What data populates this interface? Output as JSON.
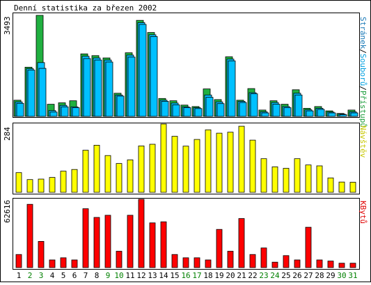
{
  "title": "Denní statistika za březen 2002",
  "colors": {
    "pages": "#2a9fd6",
    "files": "#00c0ff",
    "hits": "#20b040",
    "visits": "#ffff00",
    "kbytes": "#ff0000",
    "weekend_label": "#008000"
  },
  "chart_data": [
    {
      "type": "bar",
      "panel": "top",
      "scale_label": "3493",
      "side_label": {
        "parts": [
          {
            "text": "Stránek",
            "color": "#1a7ab8"
          },
          {
            "text": "/",
            "color": "#000000"
          },
          {
            "text": "Souborů",
            "color": "#00a0e0"
          },
          {
            "text": "/",
            "color": "#000000"
          },
          {
            "text": "Přístupů",
            "color": "#20a040"
          }
        ]
      },
      "ylim": [
        0,
        3493
      ],
      "series": [
        {
          "name": "Přístupů",
          "values": [
            560,
            1700,
            3493,
            420,
            470,
            540,
            2160,
            2100,
            2020,
            800,
            2200,
            3320,
            2900,
            620,
            540,
            390,
            340,
            950,
            580,
            2060,
            560,
            960,
            220,
            540,
            420,
            920,
            280,
            340,
            190,
            100,
            220
          ]
        },
        {
          "name": "Souborů",
          "values": [
            500,
            1650,
            1860,
            200,
            380,
            330,
            2080,
            2020,
            1950,
            740,
            2120,
            3240,
            2820,
            560,
            460,
            330,
            300,
            740,
            500,
            1980,
            520,
            820,
            160,
            480,
            340,
            800,
            230,
            280,
            150,
            80,
            160
          ]
        },
        {
          "name": "Stránek",
          "values": [
            450,
            1600,
            1660,
            150,
            330,
            300,
            2000,
            1950,
            1880,
            700,
            2050,
            3180,
            2760,
            520,
            400,
            300,
            270,
            660,
            440,
            1920,
            480,
            780,
            120,
            420,
            300,
            740,
            190,
            240,
            120,
            60,
            120
          ]
        }
      ]
    },
    {
      "type": "bar",
      "panel": "middle",
      "scale_label": "284",
      "side_label": {
        "parts": [
          {
            "text": "Návštěv",
            "color": "#c8c800"
          }
        ]
      },
      "ylim": [
        0,
        284
      ],
      "series": [
        {
          "name": "Návštěv",
          "values": [
            82,
            53,
            55,
            62,
            88,
            95,
            175,
            196,
            153,
            120,
            135,
            193,
            200,
            284,
            233,
            192,
            220,
            260,
            246,
            250,
            275,
            217,
            140,
            106,
            100,
            140,
            114,
            110,
            60,
            43,
            42
          ]
        }
      ]
    },
    {
      "type": "bar",
      "panel": "bottom",
      "scale_label": "62616",
      "side_label": {
        "parts": [
          {
            "text": "KBytů",
            "color": "#e00000"
          }
        ]
      },
      "ylim": [
        0,
        62616
      ],
      "series": [
        {
          "name": "KBytů",
          "values": [
            12000,
            58000,
            24000,
            7000,
            9000,
            7000,
            54000,
            46000,
            48000,
            15000,
            48000,
            62616,
            41000,
            42000,
            12000,
            9000,
            9000,
            7000,
            35000,
            15000,
            45000,
            12000,
            18000,
            5000,
            11000,
            7000,
            37000,
            7000,
            6000,
            4000,
            4000
          ]
        }
      ]
    }
  ],
  "x_axis": {
    "categories": [
      "1",
      "2",
      "3",
      "4",
      "5",
      "6",
      "7",
      "8",
      "9",
      "10",
      "11",
      "12",
      "13",
      "14",
      "15",
      "16",
      "17",
      "18",
      "19",
      "20",
      "21",
      "22",
      "23",
      "24",
      "25",
      "26",
      "27",
      "28",
      "29",
      "30",
      "31"
    ],
    "weekend": [
      false,
      true,
      true,
      false,
      false,
      false,
      false,
      false,
      true,
      true,
      false,
      false,
      false,
      false,
      false,
      true,
      true,
      false,
      false,
      false,
      false,
      false,
      true,
      true,
      false,
      false,
      false,
      false,
      false,
      true,
      true
    ]
  }
}
